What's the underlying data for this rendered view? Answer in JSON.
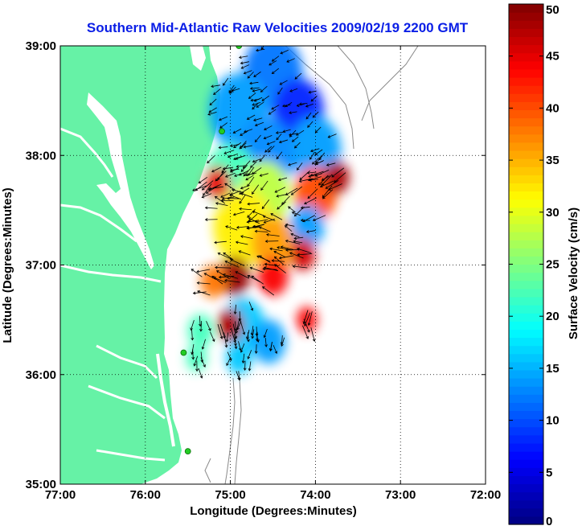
{
  "chart_data": {
    "type": "heatmap",
    "title": "Southern Mid-Atlantic Raw Velocities 2009/02/19 2200 GMT",
    "xlabel": "Longitude (Degrees:Minutes)",
    "ylabel": "Latitude (Degrees:Minutes)",
    "colorbar_label": "Surface Velocity (cm/s)",
    "x_ticks": [
      {
        "value": -77,
        "label": "77:00"
      },
      {
        "value": -76,
        "label": "76:00"
      },
      {
        "value": -75,
        "label": "75:00"
      },
      {
        "value": -74,
        "label": "74:00"
      },
      {
        "value": -73,
        "label": "73:00"
      },
      {
        "value": -72,
        "label": "72:00"
      }
    ],
    "y_ticks": [
      {
        "value": 35,
        "label": "35:00"
      },
      {
        "value": 36,
        "label": "36:00"
      },
      {
        "value": 37,
        "label": "37:00"
      },
      {
        "value": 38,
        "label": "38:00"
      },
      {
        "value": 39,
        "label": "39:00"
      }
    ],
    "xlim": [
      -77,
      -72
    ],
    "ylim": [
      35,
      39
    ],
    "colorbar_ticks": [
      0,
      5,
      10,
      15,
      20,
      25,
      30,
      35,
      40,
      45,
      50
    ],
    "colorbar_range": [
      0,
      50
    ],
    "colormap": "jet",
    "grid": "dotted",
    "land_color": "#66f2a6",
    "coast_color": "#ffffff",
    "isobath_color": "#8a8a8a",
    "station_color": "#22cc22",
    "stations": [
      {
        "lon": -74.9,
        "lat": 39.0
      },
      {
        "lon": -75.1,
        "lat": 38.22
      },
      {
        "lon": -75.55,
        "lat": 36.2
      },
      {
        "lon": -75.5,
        "lat": 35.3
      }
    ],
    "speed_patches": [
      {
        "lon": -74.5,
        "lat": 38.75,
        "value": 12,
        "r": 0.35
      },
      {
        "lon": -74.2,
        "lat": 38.4,
        "value": 8,
        "r": 0.3
      },
      {
        "lon": -74.9,
        "lat": 38.4,
        "value": 14,
        "r": 0.35
      },
      {
        "lon": -74.0,
        "lat": 38.05,
        "value": 14,
        "r": 0.3
      },
      {
        "lon": -74.6,
        "lat": 38.0,
        "value": 13,
        "r": 0.35
      },
      {
        "lon": -75.0,
        "lat": 37.8,
        "value": 22,
        "r": 0.3
      },
      {
        "lon": -75.15,
        "lat": 37.75,
        "value": 45,
        "r": 0.15
      },
      {
        "lon": -74.6,
        "lat": 37.65,
        "value": 28,
        "r": 0.3
      },
      {
        "lon": -74.0,
        "lat": 37.65,
        "value": 40,
        "r": 0.25
      },
      {
        "lon": -73.75,
        "lat": 37.8,
        "value": 48,
        "r": 0.15
      },
      {
        "lon": -74.85,
        "lat": 37.35,
        "value": 32,
        "r": 0.35
      },
      {
        "lon": -74.1,
        "lat": 37.35,
        "value": 14,
        "r": 0.2
      },
      {
        "lon": -74.5,
        "lat": 37.2,
        "value": 36,
        "r": 0.25
      },
      {
        "lon": -74.15,
        "lat": 37.1,
        "value": 46,
        "r": 0.15
      },
      {
        "lon": -74.95,
        "lat": 36.9,
        "value": 49,
        "r": 0.18
      },
      {
        "lon": -74.5,
        "lat": 36.9,
        "value": 44,
        "r": 0.18
      },
      {
        "lon": -75.2,
        "lat": 36.85,
        "value": 38,
        "r": 0.15
      },
      {
        "lon": -74.85,
        "lat": 36.45,
        "value": 16,
        "r": 0.25
      },
      {
        "lon": -75.0,
        "lat": 36.45,
        "value": 48,
        "r": 0.15
      },
      {
        "lon": -75.35,
        "lat": 36.4,
        "value": 22,
        "r": 0.15
      },
      {
        "lon": -74.1,
        "lat": 36.5,
        "value": 44,
        "r": 0.12
      },
      {
        "lon": -74.55,
        "lat": 36.3,
        "value": 14,
        "r": 0.2
      },
      {
        "lon": -75.4,
        "lat": 36.15,
        "value": 22,
        "r": 0.12
      },
      {
        "lon": -74.9,
        "lat": 36.15,
        "value": 16,
        "r": 0.15
      }
    ]
  }
}
